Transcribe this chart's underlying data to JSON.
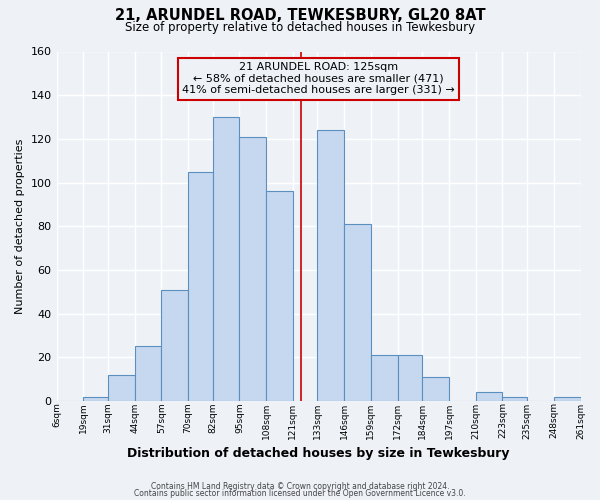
{
  "title": "21, ARUNDEL ROAD, TEWKESBURY, GL20 8AT",
  "subtitle": "Size of property relative to detached houses in Tewkesbury",
  "xlabel": "Distribution of detached houses by size in Tewkesbury",
  "ylabel": "Number of detached properties",
  "bin_labels": [
    "6sqm",
    "19sqm",
    "31sqm",
    "44sqm",
    "57sqm",
    "70sqm",
    "82sqm",
    "95sqm",
    "108sqm",
    "121sqm",
    "133sqm",
    "146sqm",
    "159sqm",
    "172sqm",
    "184sqm",
    "197sqm",
    "210sqm",
    "223sqm",
    "235sqm",
    "248sqm",
    "261sqm"
  ],
  "bin_edges": [
    6,
    19,
    31,
    44,
    57,
    70,
    82,
    95,
    108,
    121,
    133,
    146,
    159,
    172,
    184,
    197,
    210,
    223,
    235,
    248,
    261
  ],
  "bar_heights": [
    0,
    2,
    12,
    25,
    51,
    105,
    130,
    121,
    96,
    0,
    124,
    81,
    21,
    21,
    11,
    0,
    4,
    2,
    0,
    2
  ],
  "bar_color": "#c5d8f0",
  "bar_edge_color": "#5a8fc0",
  "property_value": 125,
  "vline_color": "#cc0000",
  "annotation_title": "21 ARUNDEL ROAD: 125sqm",
  "annotation_line1": "← 58% of detached houses are smaller (471)",
  "annotation_line2": "41% of semi-detached houses are larger (331) →",
  "annotation_box_color": "#cc0000",
  "footer1": "Contains HM Land Registry data © Crown copyright and database right 2024.",
  "footer2": "Contains public sector information licensed under the Open Government Licence v3.0.",
  "ylim": [
    0,
    160
  ],
  "yticks": [
    0,
    20,
    40,
    60,
    80,
    100,
    120,
    140,
    160
  ],
  "background_color": "#eef2f7"
}
